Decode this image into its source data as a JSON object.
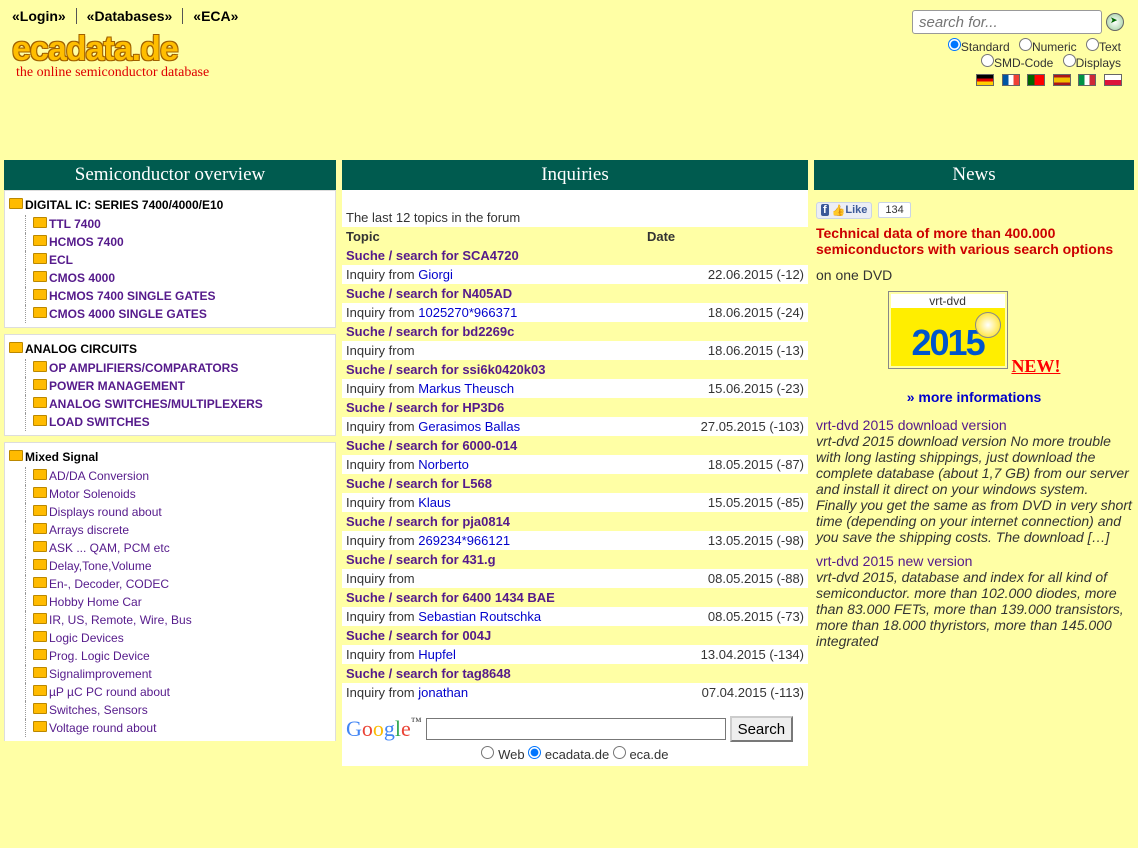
{
  "menu": {
    "login": "«Login»",
    "databases": "«Databases»",
    "eca": "«ECA»"
  },
  "logo": {
    "site": "ecadata.de",
    "tag": "the online semiconductor database"
  },
  "search": {
    "placeholder": "search for...",
    "std": "Standard",
    "num": "Numeric",
    "txt": "Text",
    "smd": "SMD-Code",
    "disp": "Displays"
  },
  "flags": {
    "de": "#000",
    "fr": "#0055a4",
    "pt": "#006600",
    "es": "#aa151b",
    "it": "#009246",
    "pl": "#dc143c"
  },
  "cols": {
    "c1": "Semiconductor overview",
    "c2": "Inquiries",
    "c3": "News"
  },
  "tree": {
    "digital": {
      "t": "DIGITAL IC: SERIES 7400/4000/E10",
      "items": [
        "TTL 7400",
        "HCMOS 7400",
        "ECL",
        "CMOS 4000",
        "HCMOS 7400 SINGLE GATES",
        "CMOS 4000 SINGLE GATES"
      ]
    },
    "analog": {
      "t": "ANALOG CIRCUITS",
      "items": [
        "OP AMPLIFIERS/COMPARATORS",
        "POWER MANAGEMENT",
        "ANALOG SWITCHES/MULTIPLEXERS",
        "LOAD SWITCHES"
      ]
    },
    "mixed": {
      "t": "Mixed Signal",
      "items": [
        "AD/DA Conversion",
        "Motor Solenoids",
        "Displays round about",
        "Arrays discrete",
        "ASK ... QAM, PCM etc",
        "Delay,Tone,Volume",
        "En-, Decoder, CODEC",
        "Hobby Home Car",
        "IR, US, Remote, Wire, Bus",
        "Logic Devices",
        "Prog. Logic Device",
        "Signalimprovement",
        "µP µC PC round about",
        "Switches, Sensors",
        "Voltage round about"
      ]
    }
  },
  "forum": {
    "intro": "The last 12 topics in the forum",
    "h1": "Topic",
    "h2": "Date",
    "rows": [
      {
        "t": "Suche / search for SCA4720",
        "f": "Giorgi",
        "d": "22.06.2015 (-12)"
      },
      {
        "t": "Suche / search for N405AD",
        "f": "1025270*966371",
        "d": "18.06.2015 (-24)"
      },
      {
        "t": "Suche / search for bd2269c",
        "f": "",
        "d": "18.06.2015 (-13)"
      },
      {
        "t": "Suche / search for ssi6k0420k03",
        "f": "Markus Theusch",
        "d": "15.06.2015 (-23)"
      },
      {
        "t": "Suche / search for HP3D6",
        "f": "Gerasimos Ballas",
        "d": "27.05.2015 (-103)"
      },
      {
        "t": "Suche / search for 6000-014",
        "f": "Norberto",
        "d": "18.05.2015 (-87)"
      },
      {
        "t": "Suche / search for L568",
        "f": "Klaus",
        "d": "15.05.2015 (-85)"
      },
      {
        "t": "Suche / search for pja0814",
        "f": "269234*966121",
        "d": "13.05.2015 (-98)"
      },
      {
        "t": "Suche / search for 431.g",
        "f": "",
        "d": "08.05.2015 (-88)"
      },
      {
        "t": "Suche / search for 6400 1434 BAE",
        "f": "Sebastian Routschka",
        "d": "08.05.2015 (-73)"
      },
      {
        "t": "Suche / search for 004J",
        "f": "Hupfel",
        "d": "13.04.2015 (-134)"
      },
      {
        "t": "Suche / search for tag8648",
        "f": "jonathan",
        "d": "07.04.2015 (-113)"
      }
    ]
  },
  "gsearch": {
    "btn": "Search",
    "web": "Web",
    "eca1": "ecadata.de",
    "eca2": "eca.de"
  },
  "news": {
    "like": "Like",
    "count": "134",
    "tech": "Technical data of more than 400.000 semiconductors with various search options",
    "ondvd": "on one DVD",
    "vrt": "vrt-dvd",
    "year": "2015",
    "new": "NEW!",
    "more": "» more informations",
    "item1": {
      "t": "vrt-dvd 2015 download version",
      "b": "vrt-dvd 2015 download version No more trouble with long lasting shippings, just download the complete database (about 1,7 GB) from our server and install it direct on your windows system. Finally you get the same as from DVD in very short time (depending on your internet connection) and you save the shipping costs. The download […]"
    },
    "item2": {
      "t": "vrt-dvd 2015 new version",
      "b": "vrt-dvd 2015, database and index for all kind of semiconductor. more than 102.000 diodes, more than 83.000 FETs, more than 139.000 transistors, more than 18.000 thyristors, more than 145.000 integrated"
    }
  }
}
